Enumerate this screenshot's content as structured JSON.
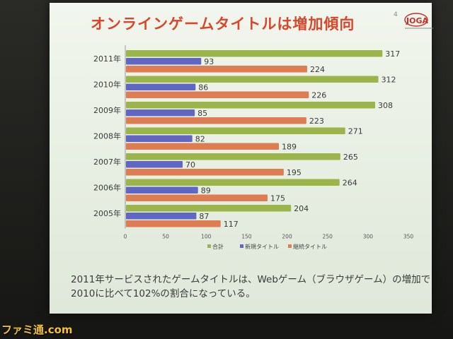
{
  "slide": {
    "title": "オンラインゲームタイトルは増加傾向",
    "page_number": "4",
    "logo_text": "JOGA",
    "caption_line1": "2011年サービスされたゲームタイトルは、Webゲーム（ブラウザゲーム）の増加で",
    "caption_line2": "2010に比べて102%の割合になっている。"
  },
  "watermark": "ファミ通.com",
  "colors": {
    "total": "#9bb54a",
    "new": "#5f66c4",
    "continuing": "#de7c52",
    "title": "#d8462c"
  },
  "chart_data": {
    "type": "bar",
    "orientation": "horizontal",
    "categories": [
      "2011年",
      "2010年",
      "2009年",
      "2008年",
      "2007年",
      "2006年",
      "2005年"
    ],
    "series": [
      {
        "name": "合計",
        "values": [
          317,
          312,
          308,
          271,
          265,
          264,
          204
        ]
      },
      {
        "name": "新規タイトル",
        "values": [
          93,
          86,
          85,
          82,
          70,
          89,
          87
        ]
      },
      {
        "name": "継続タイトル",
        "values": [
          224,
          226,
          223,
          189,
          195,
          175,
          117
        ]
      }
    ],
    "xlim": [
      0,
      350
    ],
    "xticks": [
      0,
      50,
      100,
      150,
      200,
      250,
      300,
      350
    ],
    "legend_position": "bottom",
    "grid": false
  }
}
